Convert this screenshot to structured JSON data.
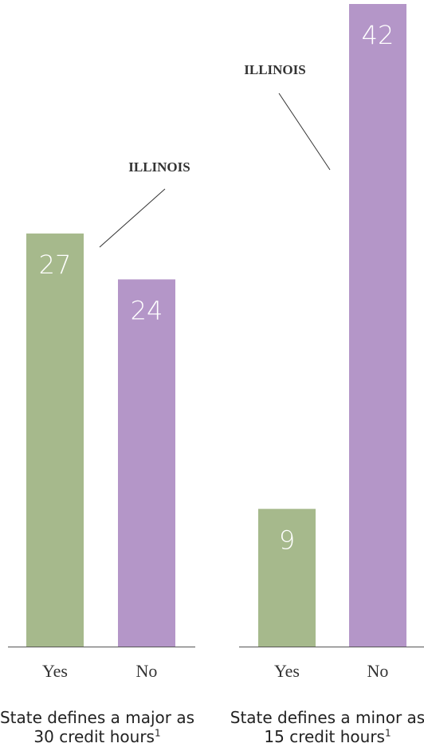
{
  "chart_data": [
    {
      "type": "bar",
      "title": "State defines a major as 30 credit hours",
      "title_note": "1",
      "categories": [
        "Yes",
        "No"
      ],
      "values": [
        27,
        24
      ],
      "colors": [
        "#a6b98c",
        "#b496c8"
      ],
      "ylim": [
        0,
        42
      ],
      "annotation": "ILLINOIS"
    },
    {
      "type": "bar",
      "title": "State defines a minor as 15 credit hours",
      "title_note": "1",
      "categories": [
        "Yes",
        "No"
      ],
      "values": [
        9,
        42
      ],
      "colors": [
        "#a6b98c",
        "#b496c8"
      ],
      "ylim": [
        0,
        42
      ],
      "annotation": "ILLINOIS"
    }
  ]
}
